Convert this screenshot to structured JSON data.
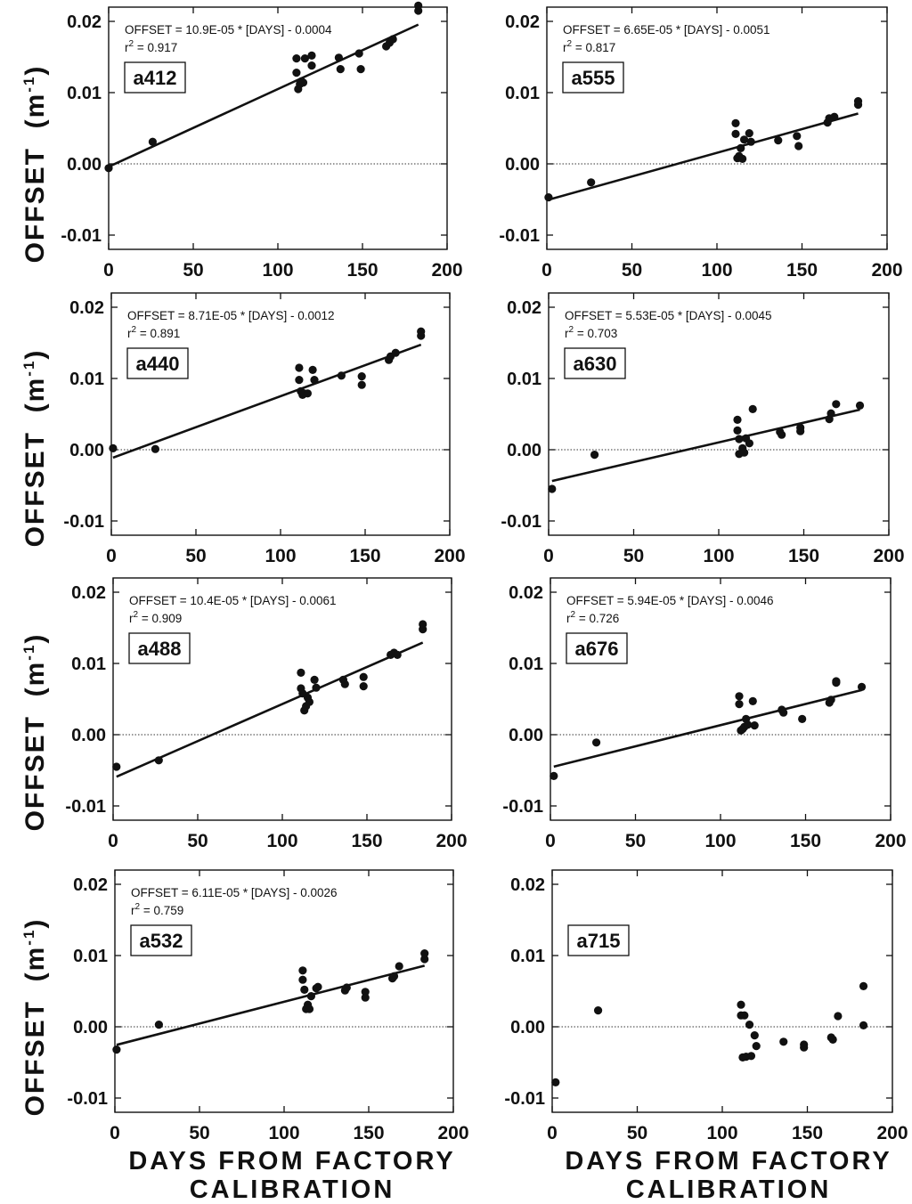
{
  "figure": {
    "ylabel_text": "OFFSET",
    "ylabel_unit_open": "(m",
    "ylabel_unit_exp": "-1",
    "ylabel_unit_close": ")",
    "xlabel_line1": "DAYS FROM FACTORY",
    "xlabel_line2": "CALIBRATION"
  },
  "chart_data": [
    {
      "type": "scatter",
      "label": "a412",
      "equation": "OFFSET = 10.9E-05 * [DAYS] - 0.0004",
      "r2_prefix": "r",
      "r2_sup": "2",
      "r2_value": " = 0.917",
      "fit": {
        "slope": 0.000109,
        "intercept": -0.0004
      },
      "xlim": [
        0,
        200
      ],
      "ylim": [
        -0.012,
        0.022
      ],
      "xticks": [
        0,
        50,
        100,
        150,
        200
      ],
      "xtick_labels": [
        "0",
        "50",
        "100",
        "150",
        "200"
      ],
      "yticks": [
        -0.01,
        0,
        0.01,
        0.02
      ],
      "ytick_labels": [
        "-0.01",
        "0.00",
        "0.01",
        "0.02"
      ],
      "points": [
        [
          0,
          -0.0006
        ],
        [
          26,
          0.0031
        ],
        [
          111,
          0.0148
        ],
        [
          111,
          0.0128
        ],
        [
          112,
          0.0105
        ],
        [
          113,
          0.0112
        ],
        [
          114,
          0.0116
        ],
        [
          115,
          0.0114
        ],
        [
          116,
          0.0148
        ],
        [
          120,
          0.0152
        ],
        [
          120,
          0.0138
        ],
        [
          136,
          0.0149
        ],
        [
          137,
          0.0133
        ],
        [
          148,
          0.0155
        ],
        [
          149,
          0.0133
        ],
        [
          164,
          0.0165
        ],
        [
          166,
          0.017
        ],
        [
          168,
          0.0175
        ],
        [
          183,
          0.0215
        ],
        [
          183,
          0.0222
        ]
      ]
    },
    {
      "type": "scatter",
      "label": "a555",
      "equation": "OFFSET = 6.65E-05 * [DAYS] - 0.0051",
      "r2_prefix": "r",
      "r2_sup": "2",
      "r2_value": " = 0.817",
      "fit": {
        "slope": 6.65e-05,
        "intercept": -0.0051
      },
      "xlim": [
        0,
        200
      ],
      "ylim": [
        -0.012,
        0.022
      ],
      "xticks": [
        0,
        50,
        100,
        150,
        200
      ],
      "xtick_labels": [
        "0",
        "50",
        "100",
        "150",
        "200"
      ],
      "yticks": [
        -0.01,
        0,
        0.01,
        0.02
      ],
      "ytick_labels": [
        "-0.01",
        "0.00",
        "0.01",
        "0.02"
      ],
      "points": [
        [
          1,
          -0.0047
        ],
        [
          26,
          -0.0026
        ],
        [
          111,
          0.0057
        ],
        [
          111,
          0.0042
        ],
        [
          112,
          0.0008
        ],
        [
          113,
          0.0011
        ],
        [
          114,
          0.0022
        ],
        [
          115,
          0.0007
        ],
        [
          116,
          0.0034
        ],
        [
          119,
          0.0043
        ],
        [
          120,
          0.0031
        ],
        [
          136,
          0.0033
        ],
        [
          147,
          0.0039
        ],
        [
          148,
          0.0025
        ],
        [
          165,
          0.0058
        ],
        [
          166,
          0.0064
        ],
        [
          169,
          0.0066
        ],
        [
          183,
          0.0083
        ],
        [
          183,
          0.0088
        ]
      ]
    },
    {
      "type": "scatter",
      "label": "a440",
      "equation": "OFFSET = 8.71E-05 * [DAYS] - 0.0012",
      "r2_prefix": "r",
      "r2_sup": "2",
      "r2_value": " = 0.891",
      "fit": {
        "slope": 8.71e-05,
        "intercept": -0.0012
      },
      "xlim": [
        0,
        200
      ],
      "ylim": [
        -0.012,
        0.022
      ],
      "xticks": [
        0,
        50,
        100,
        150,
        200
      ],
      "xtick_labels": [
        "0",
        "50",
        "100",
        "150",
        "200"
      ],
      "yticks": [
        -0.01,
        0,
        0.01,
        0.02
      ],
      "ytick_labels": [
        "-0.01",
        "0.00",
        "0.01",
        "0.02"
      ],
      "points": [
        [
          1,
          0.0002
        ],
        [
          26,
          0.0001
        ],
        [
          111,
          0.0115
        ],
        [
          111,
          0.0098
        ],
        [
          112,
          0.0082
        ],
        [
          113,
          0.0077
        ],
        [
          114,
          0.0079
        ],
        [
          116,
          0.0079
        ],
        [
          119,
          0.0112
        ],
        [
          120,
          0.0098
        ],
        [
          136,
          0.0104
        ],
        [
          148,
          0.0103
        ],
        [
          148,
          0.0091
        ],
        [
          164,
          0.0126
        ],
        [
          165,
          0.0131
        ],
        [
          168,
          0.0136
        ],
        [
          183,
          0.016
        ],
        [
          183,
          0.0166
        ]
      ]
    },
    {
      "type": "scatter",
      "label": "a630",
      "equation": "OFFSET = 5.53E-05 * [DAYS] - 0.0045",
      "r2_prefix": "r",
      "r2_sup": "2",
      "r2_value": " = 0.703",
      "fit": {
        "slope": 5.53e-05,
        "intercept": -0.0045
      },
      "xlim": [
        0,
        200
      ],
      "ylim": [
        -0.012,
        0.022
      ],
      "xticks": [
        0,
        50,
        100,
        150,
        200
      ],
      "xtick_labels": [
        "0",
        "50",
        "100",
        "150",
        "200"
      ],
      "yticks": [
        -0.01,
        0,
        0.01,
        0.02
      ],
      "ytick_labels": [
        "-0.01",
        "0.00",
        "0.01",
        "0.02"
      ],
      "points": [
        [
          2,
          -0.0055
        ],
        [
          27,
          -0.0007
        ],
        [
          111,
          0.0042
        ],
        [
          111,
          0.0027
        ],
        [
          112,
          0.0015
        ],
        [
          112,
          -0.0006
        ],
        [
          114,
          0.0002
        ],
        [
          115,
          -0.0004
        ],
        [
          116,
          0.0016
        ],
        [
          118,
          0.0009
        ],
        [
          120,
          0.0057
        ],
        [
          136,
          0.0025
        ],
        [
          137,
          0.0021
        ],
        [
          148,
          0.0031
        ],
        [
          148,
          0.0026
        ],
        [
          165,
          0.0043
        ],
        [
          166,
          0.0051
        ],
        [
          169,
          0.0064
        ],
        [
          183,
          0.0062
        ]
      ]
    },
    {
      "type": "scatter",
      "label": "a488",
      "equation": "OFFSET = 10.4E-05 * [DAYS] - 0.0061",
      "r2_prefix": "r",
      "r2_sup": "2",
      "r2_value": " = 0.909",
      "fit": {
        "slope": 0.000104,
        "intercept": -0.0061
      },
      "xlim": [
        0,
        200
      ],
      "ylim": [
        -0.012,
        0.022
      ],
      "xticks": [
        0,
        50,
        100,
        150,
        200
      ],
      "xtick_labels": [
        "0",
        "50",
        "100",
        "150",
        "200"
      ],
      "yticks": [
        -0.01,
        0,
        0.01,
        0.02
      ],
      "ytick_labels": [
        "-0.01",
        "0.00",
        "0.01",
        "0.02"
      ],
      "points": [
        [
          2,
          -0.0045
        ],
        [
          27,
          -0.0036
        ],
        [
          111,
          0.0087
        ],
        [
          111,
          0.0065
        ],
        [
          112,
          0.0058
        ],
        [
          113,
          0.0034
        ],
        [
          114,
          0.004
        ],
        [
          115,
          0.0052
        ],
        [
          116,
          0.0046
        ],
        [
          119,
          0.0077
        ],
        [
          120,
          0.0066
        ],
        [
          136,
          0.0077
        ],
        [
          137,
          0.0071
        ],
        [
          148,
          0.0081
        ],
        [
          148,
          0.0068
        ],
        [
          164,
          0.0112
        ],
        [
          166,
          0.0115
        ],
        [
          168,
          0.0112
        ],
        [
          183,
          0.0148
        ],
        [
          183,
          0.0155
        ]
      ]
    },
    {
      "type": "scatter",
      "label": "a676",
      "equation": "OFFSET = 5.94E-05 * [DAYS] - 0.0046",
      "r2_prefix": "r",
      "r2_sup": "2",
      "r2_value": " = 0.726",
      "fit": {
        "slope": 5.94e-05,
        "intercept": -0.0046
      },
      "xlim": [
        0,
        200
      ],
      "ylim": [
        -0.012,
        0.022
      ],
      "xticks": [
        0,
        50,
        100,
        150,
        200
      ],
      "xtick_labels": [
        "0",
        "50",
        "100",
        "150",
        "200"
      ],
      "yticks": [
        -0.01,
        0,
        0.01,
        0.02
      ],
      "ytick_labels": [
        "-0.01",
        "0.00",
        "0.01",
        "0.02"
      ],
      "points": [
        [
          2,
          -0.0058
        ],
        [
          27,
          -0.0011
        ],
        [
          111,
          0.0054
        ],
        [
          111,
          0.0043
        ],
        [
          112,
          0.0006
        ],
        [
          113,
          0.0008
        ],
        [
          114,
          0.0011
        ],
        [
          115,
          0.0022
        ],
        [
          116,
          0.0014
        ],
        [
          119,
          0.0047
        ],
        [
          120,
          0.0013
        ],
        [
          136,
          0.0035
        ],
        [
          137,
          0.0031
        ],
        [
          148,
          0.0022
        ],
        [
          164,
          0.0045
        ],
        [
          165,
          0.0049
        ],
        [
          168,
          0.0073
        ],
        [
          168,
          0.0075
        ],
        [
          183,
          0.0067
        ]
      ]
    },
    {
      "type": "scatter",
      "label": "a532",
      "equation": "OFFSET = 6.11E-05 * [DAYS] - 0.0026",
      "r2_prefix": "r",
      "r2_sup": "2",
      "r2_value": " = 0.759",
      "fit": {
        "slope": 6.11e-05,
        "intercept": -0.0026
      },
      "xlim": [
        0,
        200
      ],
      "ylim": [
        -0.012,
        0.022
      ],
      "xticks": [
        0,
        50,
        100,
        150,
        200
      ],
      "xtick_labels": [
        "0",
        "50",
        "100",
        "150",
        "200"
      ],
      "yticks": [
        -0.01,
        0,
        0.01,
        0.02
      ],
      "ytick_labels": [
        "-0.01",
        "0.00",
        "0.01",
        "0.02"
      ],
      "points": [
        [
          1,
          -0.0032
        ],
        [
          26,
          0.0003
        ],
        [
          111,
          0.0079
        ],
        [
          111,
          0.0066
        ],
        [
          112,
          0.0052
        ],
        [
          113,
          0.0025
        ],
        [
          114,
          0.0031
        ],
        [
          115,
          0.0025
        ],
        [
          116,
          0.0043
        ],
        [
          119,
          0.0054
        ],
        [
          120,
          0.0056
        ],
        [
          136,
          0.0051
        ],
        [
          137,
          0.0055
        ],
        [
          148,
          0.0049
        ],
        [
          148,
          0.0041
        ],
        [
          164,
          0.0068
        ],
        [
          165,
          0.0071
        ],
        [
          168,
          0.0085
        ],
        [
          183,
          0.0095
        ],
        [
          183,
          0.0103
        ]
      ]
    },
    {
      "type": "scatter",
      "label": "a715",
      "xlim": [
        0,
        200
      ],
      "ylim": [
        -0.012,
        0.022
      ],
      "xticks": [
        0,
        50,
        100,
        150,
        200
      ],
      "xtick_labels": [
        "0",
        "50",
        "100",
        "150",
        "200"
      ],
      "yticks": [
        -0.01,
        0,
        0.01,
        0.02
      ],
      "ytick_labels": [
        "-0.01",
        "0.00",
        "0.01",
        "0.02"
      ],
      "points": [
        [
          2,
          -0.0078
        ],
        [
          27,
          0.0023
        ],
        [
          111,
          0.0031
        ],
        [
          111,
          0.0016
        ],
        [
          112,
          -0.0043
        ],
        [
          113,
          0.0016
        ],
        [
          114,
          -0.0042
        ],
        [
          116,
          0.0003
        ],
        [
          117,
          -0.0041
        ],
        [
          119,
          -0.0012
        ],
        [
          120,
          -0.0027
        ],
        [
          136,
          -0.0021
        ],
        [
          148,
          -0.0025
        ],
        [
          148,
          -0.0029
        ],
        [
          164,
          -0.0015
        ],
        [
          165,
          -0.0018
        ],
        [
          168,
          0.0015
        ],
        [
          183,
          0.0057
        ],
        [
          183,
          0.0002
        ]
      ]
    }
  ]
}
